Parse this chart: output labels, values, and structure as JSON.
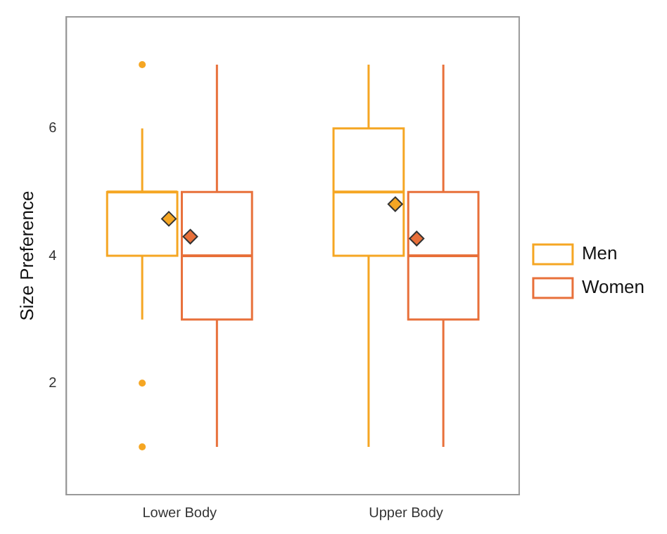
{
  "chart_data": {
    "type": "box",
    "ylabel": "Size Preference",
    "categories": [
      "Lower Body",
      "Upper Body"
    ],
    "ylim": [
      0.25,
      7.75
    ],
    "yticks": [
      2,
      4,
      6
    ],
    "grid": false,
    "legend": "right",
    "series": [
      {
        "name": "Men",
        "color": "#f5a623",
        "boxes": [
          {
            "low": 3,
            "q1": 4,
            "median": 5,
            "q3": 5,
            "high": 6,
            "mean": 4.58,
            "outliers": [
              7,
              2,
              1
            ]
          },
          {
            "low": 1,
            "q1": 4,
            "median": 5,
            "q3": 6,
            "high": 7,
            "mean": 4.81
          }
        ]
      },
      {
        "name": "Women",
        "color": "#e8703a",
        "boxes": [
          {
            "low": 1,
            "q1": 3,
            "median": 4,
            "q3": 5,
            "high": 7,
            "mean": 4.3
          },
          {
            "low": 1,
            "q1": 3,
            "median": 4,
            "q3": 5,
            "high": 7,
            "mean": 4.27
          }
        ]
      }
    ]
  }
}
